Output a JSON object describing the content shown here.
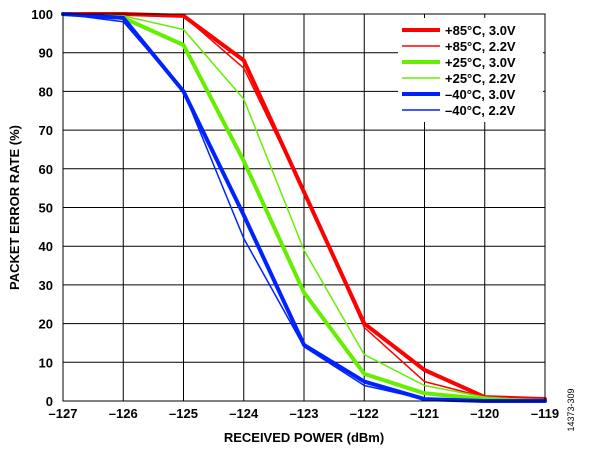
{
  "figure_id": "14373-309",
  "chart_data": {
    "type": "line",
    "title": "",
    "xlabel": "RECEIVED POWER (dBm)",
    "ylabel": "PACKET ERROR RATE (%)",
    "xlim": [
      -127,
      -119
    ],
    "ylim": [
      0,
      100
    ],
    "x_ticks": [
      -127,
      -126,
      -125,
      -124,
      -123,
      -122,
      -121,
      -120,
      -119
    ],
    "x_tick_labels": [
      "–127",
      "–126",
      "–125",
      "–124",
      "–123",
      "–122",
      "–121",
      "–120",
      "–119"
    ],
    "y_ticks": [
      0,
      10,
      20,
      30,
      40,
      50,
      60,
      70,
      80,
      90,
      100
    ],
    "y_tick_labels": [
      "0",
      "10",
      "20",
      "30",
      "40",
      "50",
      "60",
      "70",
      "80",
      "90",
      "100"
    ],
    "grid": true,
    "legend_position": "top-right",
    "x": [
      -127,
      -126,
      -125,
      -124,
      -123,
      -122,
      -121,
      -120,
      -119
    ],
    "series": [
      {
        "name": "+85°C, 3.0V",
        "color": "#ff0000",
        "weight": "thick",
        "values": [
          100,
          100,
          99.5,
          88,
          54,
          20,
          8,
          1,
          0.5
        ]
      },
      {
        "name": "+85°C, 2.2V",
        "color": "#ff0000",
        "weight": "thin",
        "values": [
          100,
          100,
          99.5,
          86,
          54,
          19,
          5,
          1,
          0.5
        ]
      },
      {
        "name": "+25°C, 3.0V",
        "color": "#66ee00",
        "weight": "thick",
        "values": [
          100,
          99,
          92,
          62,
          28,
          7,
          2,
          0.5,
          0
        ]
      },
      {
        "name": "+25°C, 2.2V",
        "color": "#66ee00",
        "weight": "thin",
        "values": [
          100,
          99.5,
          96,
          78,
          39,
          12,
          4,
          1,
          0
        ]
      },
      {
        "name": "–40°C, 3.0V",
        "color": "#0022ff",
        "weight": "thick",
        "values": [
          100,
          99,
          80,
          48,
          14.5,
          5,
          0.5,
          0,
          0
        ]
      },
      {
        "name": "–40°C, 2.2V",
        "color": "#0022ff",
        "weight": "thin",
        "values": [
          100,
          98,
          80,
          42,
          14,
          4,
          0.5,
          0,
          0
        ]
      }
    ]
  }
}
